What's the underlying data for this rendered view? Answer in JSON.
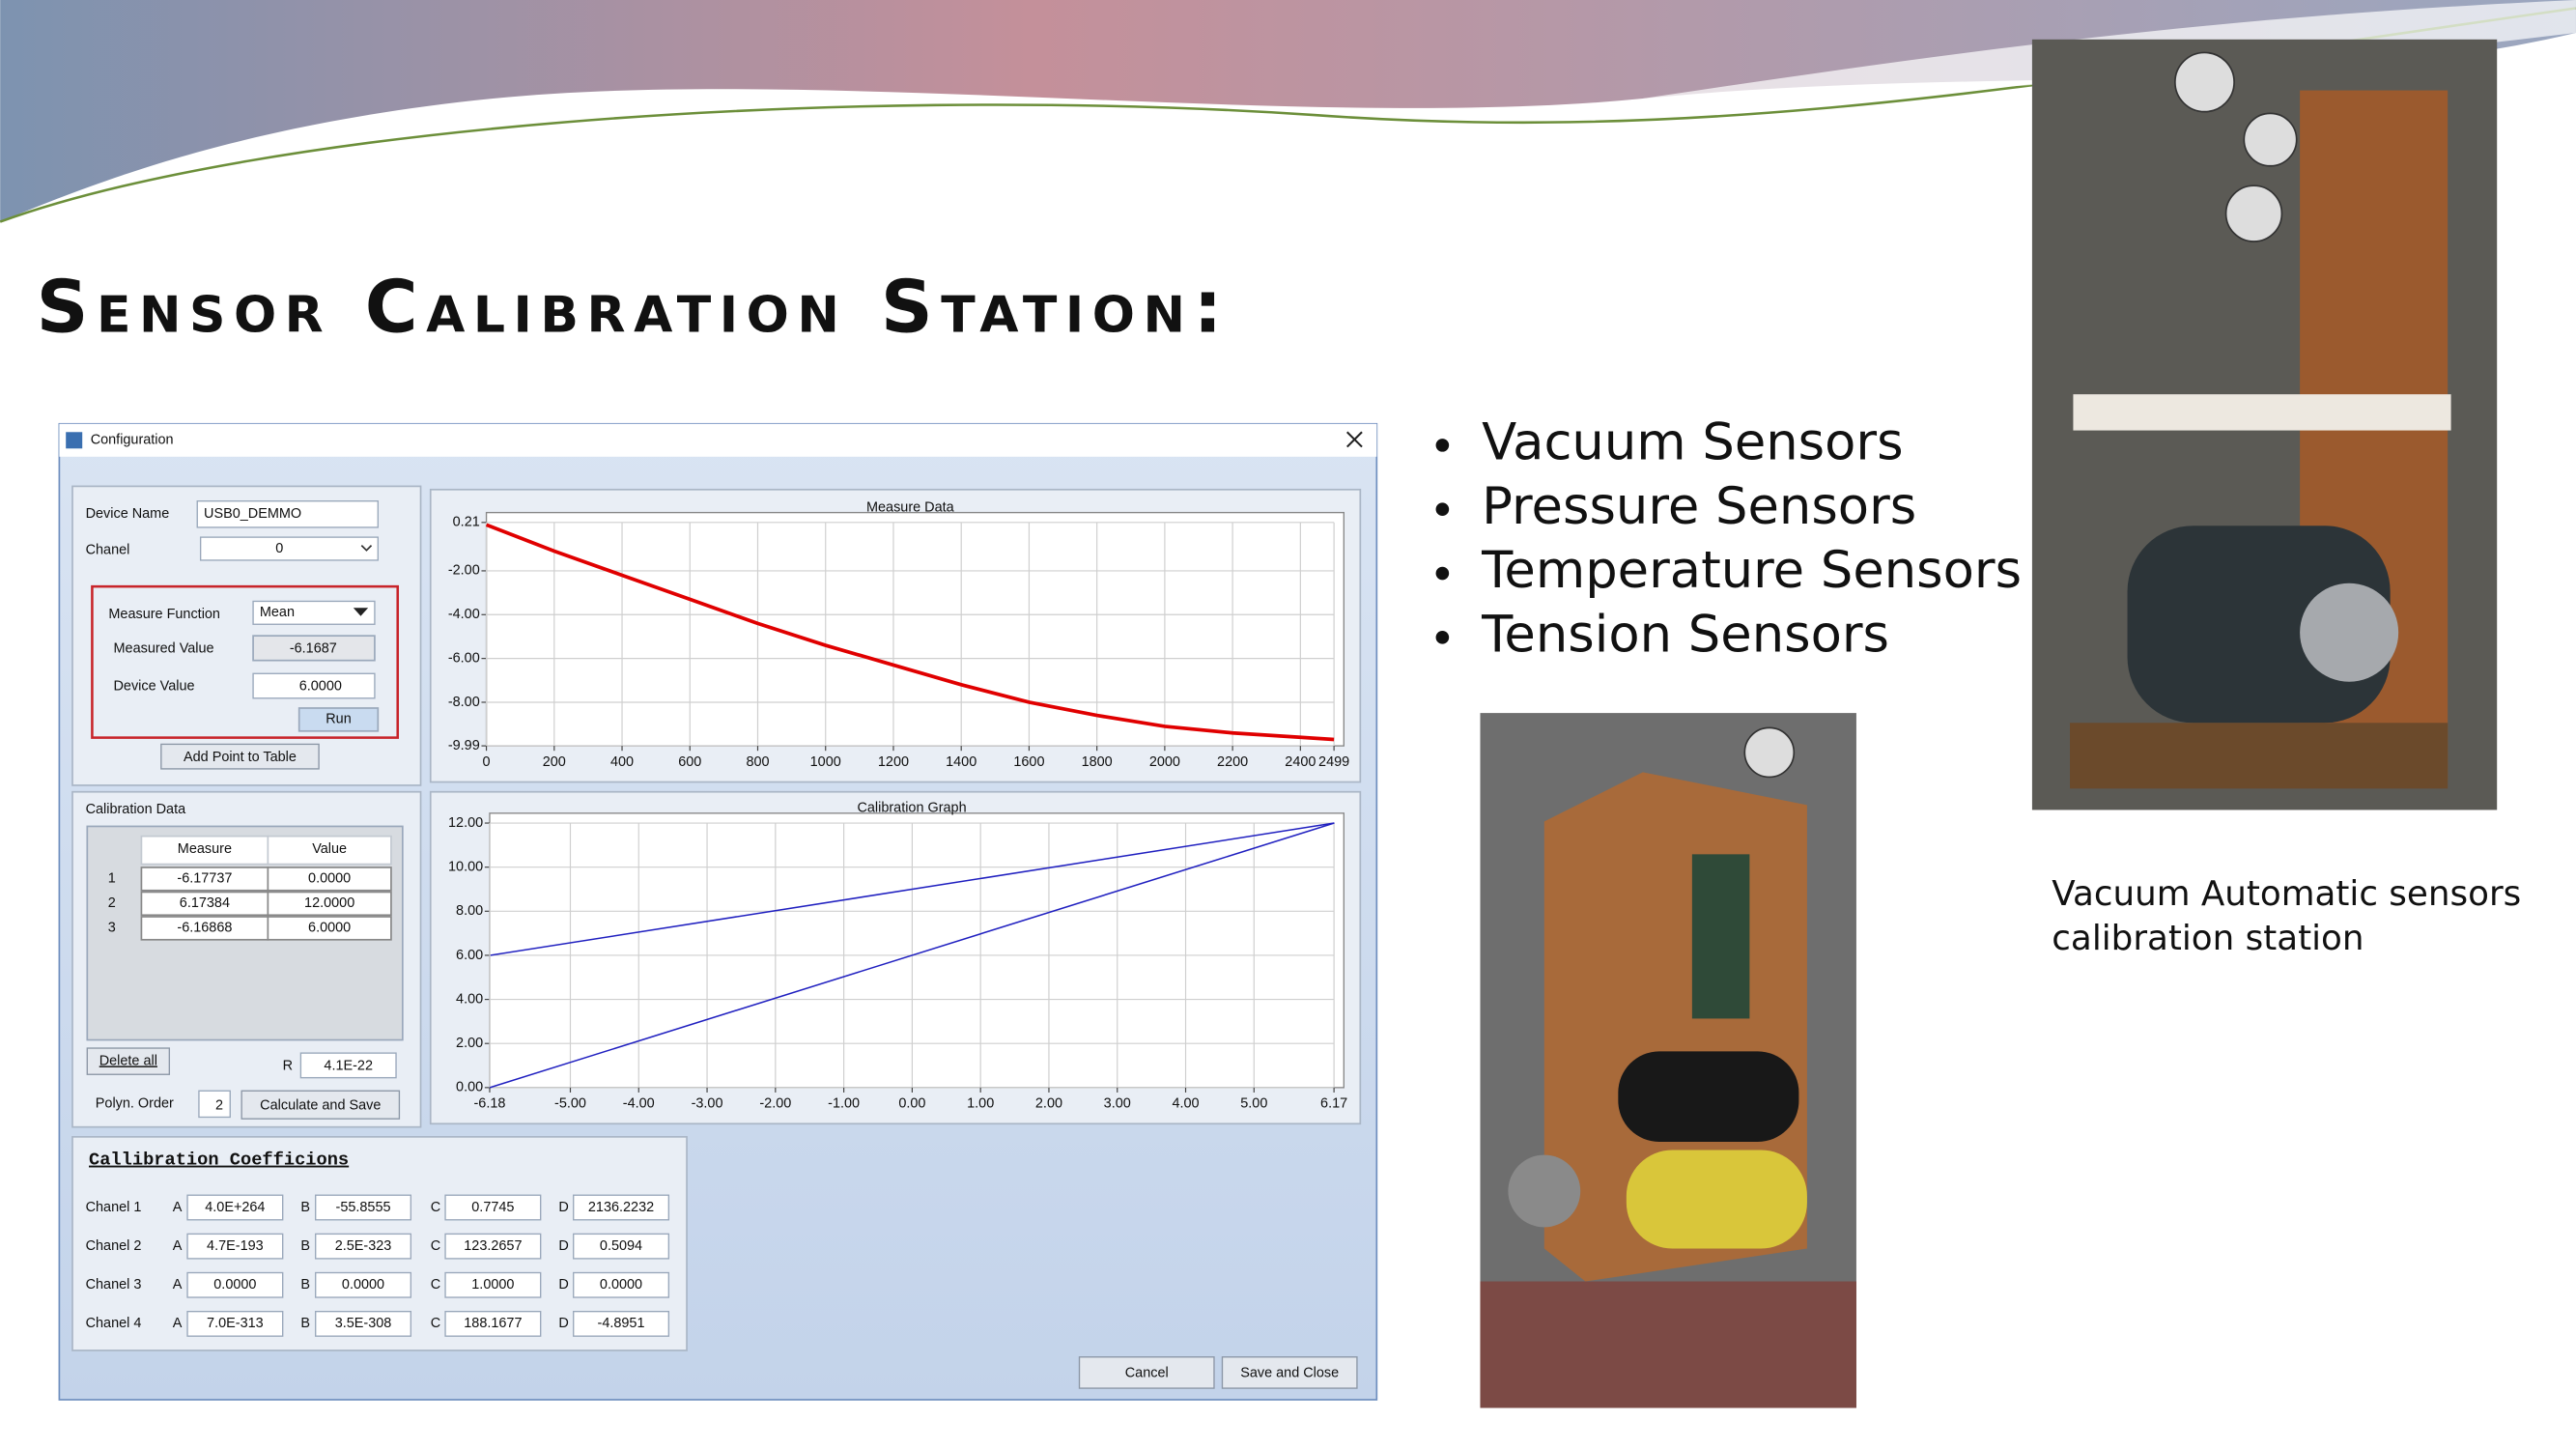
{
  "slide": {
    "title": "Sensor Calibration Station:",
    "bullets": [
      "Vacuum Sensors",
      "Pressure Sensors",
      "Temperature Sensors",
      "Tension Sensors"
    ],
    "caption": [
      "Vacuum Automatic sensors",
      "calibration station"
    ]
  },
  "window": {
    "title": "Configuration",
    "device": {
      "device_name_label": "Device Name",
      "device_name": "USB0_DEMMO",
      "chanel_label": "Chanel",
      "chanel": "0",
      "measure_function_label": "Measure Function",
      "measure_function": "Mean",
      "measured_value_label": "Measured Value",
      "measured_value": "-6.1687",
      "device_value_label": "Device Value",
      "device_value": "6.0000",
      "run": "Run",
      "add_point": "Add Point to Table"
    },
    "calibration_data": {
      "title": "Calibration Data",
      "columns": [
        "Measure",
        "Value"
      ],
      "rows": [
        [
          "1",
          "-6.17737",
          "0.0000"
        ],
        [
          "2",
          "6.17384",
          "12.0000"
        ],
        [
          "3",
          "-6.16868",
          "6.0000"
        ]
      ],
      "delete_all": "Delete all",
      "r_label": "R",
      "r": "4.1E-22",
      "order_label": "Polyn. Order",
      "order": "2",
      "calculate": "Calculate and Save"
    },
    "coefficients": {
      "title": "Callibration Coefficions",
      "rows": [
        [
          "Chanel 1",
          "A",
          "4.0E+264",
          "B",
          "-55.8555",
          "C",
          "0.7745",
          "D",
          "2136.2232"
        ],
        [
          "Chanel 2",
          "A",
          "4.7E-193",
          "B",
          "2.5E-323",
          "C",
          "123.2657",
          "D",
          "0.5094"
        ],
        [
          "Chanel 3",
          "A",
          "0.0000",
          "B",
          "0.0000",
          "C",
          "1.0000",
          "D",
          "0.0000"
        ],
        [
          "Chanel 4",
          "A",
          "7.0E-313",
          "B",
          "3.5E-308",
          "C",
          "188.1677",
          "D",
          "-4.8951"
        ]
      ]
    },
    "buttons": [
      "Cancel",
      "Save and Close"
    ],
    "measure_chart": {
      "type": "line",
      "title": "Measure Data",
      "color": "#e00000",
      "x": [
        0,
        200,
        400,
        600,
        800,
        1000,
        1200,
        1400,
        1600,
        1800,
        2000,
        2200,
        2400,
        2499
      ],
      "values": [
        0.1,
        -1.1,
        -2.2,
        -3.3,
        -4.4,
        -5.4,
        -6.3,
        -7.2,
        -8.0,
        -8.6,
        -9.1,
        -9.4,
        -9.6,
        -9.7
      ],
      "xlim": [
        0,
        2499
      ],
      "ylim": [
        -9.99,
        0.21
      ],
      "xticks": [
        0,
        200,
        400,
        600,
        800,
        1000,
        1200,
        1400,
        1600,
        1800,
        2000,
        2200,
        2400,
        2499
      ],
      "yticks": [
        0.21,
        {
          "value": -2,
          "label": "-2.00"
        },
        {
          "value": -4,
          "label": "-4.00"
        },
        {
          "value": -6,
          "label": "-6.00"
        },
        {
          "value": -8,
          "label": "-8.00"
        },
        -9.99
      ],
      "grid": true
    },
    "calibration_chart": {
      "type": "line",
      "title": "Calibration Graph",
      "series": [
        {
          "color": "#2020c0",
          "x": [
            -6.17737,
            6.17384
          ],
          "values": [
            0,
            12
          ]
        },
        {
          "color": "#2020c0",
          "x": [
            -6.16868,
            6.17384
          ],
          "values": [
            6,
            12
          ]
        }
      ],
      "xlim": [
        -6.18,
        6.17
      ],
      "ylim": [
        0,
        12
      ],
      "xticks": [
        -6.18,
        {
          "value": -5,
          "label": "-5.00"
        },
        {
          "value": -4,
          "label": "-4.00"
        },
        {
          "value": -3,
          "label": "-3.00"
        },
        {
          "value": -2,
          "label": "-2.00"
        },
        {
          "value": -1,
          "label": "-1.00"
        },
        {
          "value": 0,
          "label": "0.00"
        },
        {
          "value": 1,
          "label": "1.00"
        },
        {
          "value": 2,
          "label": "2.00"
        },
        {
          "value": 3,
          "label": "3.00"
        },
        {
          "value": 4,
          "label": "4.00"
        },
        {
          "value": 5,
          "label": "5.00"
        },
        6.17
      ],
      "yticks": [
        {
          "value": 0,
          "label": "0.00"
        },
        {
          "value": 2,
          "label": "2.00"
        },
        {
          "value": 4,
          "label": "4.00"
        },
        {
          "value": 6,
          "label": "6.00"
        },
        {
          "value": 8,
          "label": "8.00"
        },
        {
          "value": 10,
          "label": "10.00"
        },
        {
          "value": 12,
          "label": "12.00"
        }
      ],
      "grid": true
    }
  }
}
